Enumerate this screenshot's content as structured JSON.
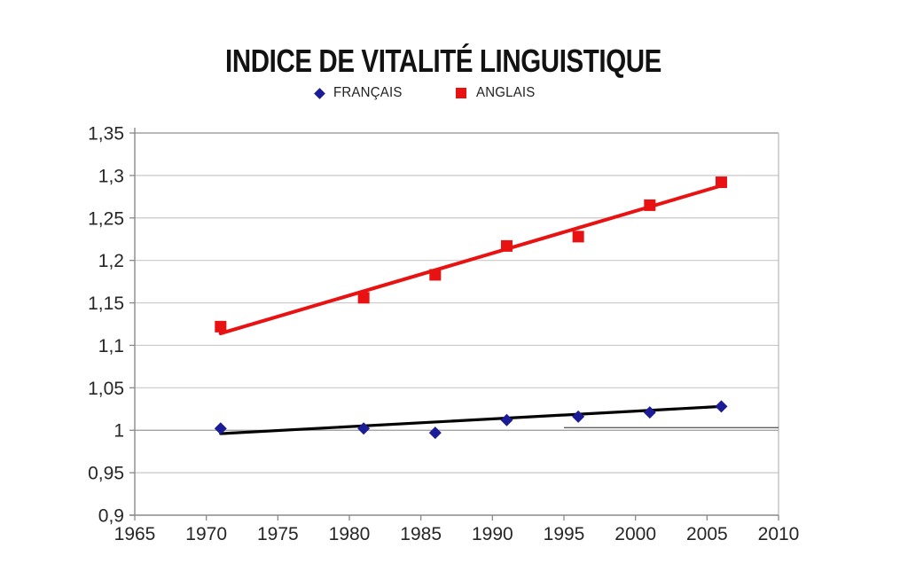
{
  "chart_data": {
    "type": "scatter",
    "title": "INDICE DE VITALITÉ LINGUISTIQUE",
    "xlabel": "",
    "ylabel": "",
    "xlim": [
      1965,
      2010
    ],
    "ylim": [
      0.9,
      1.35
    ],
    "grid": true,
    "legend_position": "top",
    "x": [
      1971,
      1981,
      1986,
      1991,
      1996,
      2001,
      2006
    ],
    "series": [
      {
        "id": "francais",
        "name": "FRANÇAIS",
        "marker": "diamond",
        "color": "#1c1c96",
        "values": [
          1.002,
          1.002,
          0.997,
          1.012,
          1.016,
          1.021,
          1.028
        ],
        "trendline": {
          "x1": 1971,
          "y1": 0.996,
          "x2": 2006,
          "y2": 1.028,
          "color": "#000000",
          "width": 3.2
        }
      },
      {
        "id": "anglais",
        "name": "ANGLAIS",
        "marker": "square",
        "color": "#e81212",
        "values": [
          1.122,
          1.156,
          1.183,
          1.217,
          1.228,
          1.265,
          1.292
        ],
        "trendline": {
          "x1": 1971,
          "y1": 1.114,
          "x2": 2006,
          "y2": 1.288,
          "color": "#e81212",
          "width": 4
        }
      }
    ],
    "x_ticks": [
      {
        "value": 1965,
        "label": "1965"
      },
      {
        "value": 1970,
        "label": "1970"
      },
      {
        "value": 1975,
        "label": "1975"
      },
      {
        "value": 1980,
        "label": "1980"
      },
      {
        "value": 1985,
        "label": "1985"
      },
      {
        "value": 1990,
        "label": "1990"
      },
      {
        "value": 1995,
        "label": "1995"
      },
      {
        "value": 2000,
        "label": "2000"
      },
      {
        "value": 2005,
        "label": "2005"
      },
      {
        "value": 2010,
        "label": "2010"
      }
    ],
    "y_ticks": [
      {
        "value": 0.9,
        "label": "0,9"
      },
      {
        "value": 0.95,
        "label": "0,95"
      },
      {
        "value": 1.0,
        "label": "1"
      },
      {
        "value": 1.05,
        "label": "1,05"
      },
      {
        "value": 1.1,
        "label": "1,1"
      },
      {
        "value": 1.15,
        "label": "1,15"
      },
      {
        "value": 1.2,
        "label": "1,2"
      },
      {
        "value": 1.25,
        "label": "1,25"
      },
      {
        "value": 1.3,
        "label": "1,3"
      },
      {
        "value": 1.35,
        "label": "1,35"
      }
    ],
    "extra_segment": {
      "x1": 1995,
      "x2": 2010,
      "y": 1.003,
      "color": "#5f5f5f"
    },
    "colors": {
      "gridline": "#c9c9c9",
      "baseline": "#9a9a9a",
      "axis": "#8a8a8a",
      "border_top": "#8f8f8f",
      "border_right": "#b8b8b8",
      "tick_label": "#262626",
      "title": "#121212"
    }
  }
}
